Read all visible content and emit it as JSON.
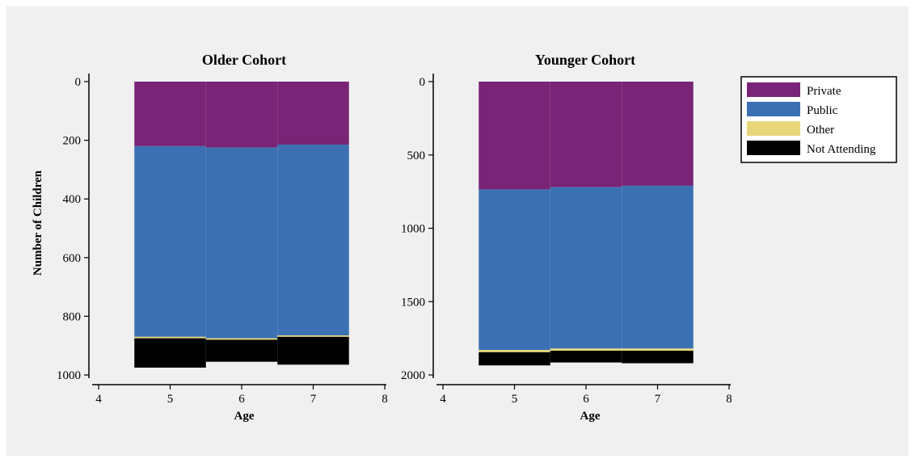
{
  "colors": {
    "Private": "#792476",
    "Public": "#3b71b3",
    "Other": "#e8d77a",
    "Not Attending": "#000000",
    "background": "#f0f0f0"
  },
  "legend": {
    "items": [
      "Private",
      "Public",
      "Other",
      "Not Attending"
    ]
  },
  "chart_data": [
    {
      "type": "bar",
      "title": "Older Cohort",
      "xlabel": "Age",
      "ylabel": "Number of Children",
      "x_ticks": [
        "4",
        "5",
        "6",
        "7",
        "8"
      ],
      "y_ticks": [
        "0",
        "200",
        "400",
        "600",
        "800",
        "1000"
      ],
      "xlim": [
        4,
        8
      ],
      "ylim": [
        0,
        1000
      ],
      "y_inverted": true,
      "categories": [
        "5",
        "6",
        "7"
      ],
      "series": [
        {
          "name": "Private",
          "values": [
            220,
            225,
            215
          ]
        },
        {
          "name": "Public",
          "values": [
            650,
            650,
            650
          ]
        },
        {
          "name": "Other",
          "values": [
            5,
            5,
            5
          ]
        },
        {
          "name": "Not Attending",
          "values": [
            100,
            75,
            95
          ]
        }
      ]
    },
    {
      "type": "bar",
      "title": "Younger Cohort",
      "xlabel": "Age",
      "ylabel": "",
      "x_ticks": [
        "4",
        "5",
        "6",
        "7",
        "8"
      ],
      "y_ticks": [
        "0",
        "500",
        "1000",
        "1500",
        "2000"
      ],
      "xlim": [
        4,
        8
      ],
      "ylim": [
        0,
        2000
      ],
      "y_inverted": true,
      "categories": [
        "5",
        "6",
        "7"
      ],
      "series": [
        {
          "name": "Private",
          "values": [
            735,
            720,
            710
          ]
        },
        {
          "name": "Public",
          "values": [
            1095,
            1100,
            1110
          ]
        },
        {
          "name": "Other",
          "values": [
            15,
            15,
            15
          ]
        },
        {
          "name": "Not Attending",
          "values": [
            90,
            80,
            85
          ]
        }
      ]
    }
  ]
}
